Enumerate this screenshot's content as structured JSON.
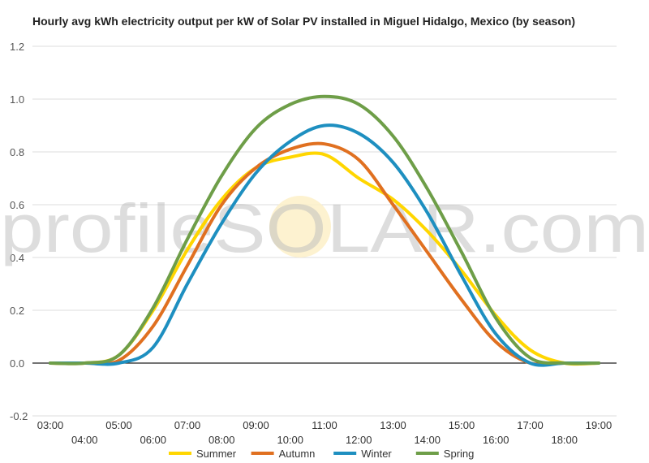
{
  "chart_data": {
    "type": "line",
    "title": "Hourly avg kWh electricity output per kW of Solar PV installed in Miguel Hidalgo, Mexico (by season)",
    "xlabel": "",
    "ylabel": "",
    "ylim": [
      -0.2,
      1.2
    ],
    "yticks": [
      -0.2,
      0.0,
      0.2,
      0.4,
      0.6,
      0.8,
      1.0,
      1.2
    ],
    "ytick_labels": [
      "-0.2",
      "0.0",
      "0.2",
      "0.4",
      "0.6",
      "0.8",
      "1.0",
      "1.2"
    ],
    "x": [
      3,
      4,
      5,
      6,
      7,
      8,
      9,
      10,
      11,
      12,
      13,
      14,
      15,
      16,
      17,
      18,
      19
    ],
    "x_labels": [
      "03:00",
      "04:00",
      "05:00",
      "06:00",
      "07:00",
      "08:00",
      "09:00",
      "10:00",
      "11:00",
      "12:00",
      "13:00",
      "14:00",
      "15:00",
      "16:00",
      "17:00",
      "18:00",
      "19:00"
    ],
    "grid": true,
    "legend_position": "bottom",
    "watermark": "profileSOLAR.com",
    "series": [
      {
        "name": "Summer",
        "color": "#ffd600",
        "values": [
          0.0,
          0.0,
          0.03,
          0.2,
          0.43,
          0.62,
          0.74,
          0.78,
          0.79,
          0.7,
          0.62,
          0.5,
          0.35,
          0.18,
          0.05,
          0.0,
          0.0
        ]
      },
      {
        "name": "Autumn",
        "color": "#e07020",
        "values": [
          0.0,
          0.0,
          0.01,
          0.14,
          0.37,
          0.6,
          0.74,
          0.81,
          0.83,
          0.77,
          0.6,
          0.42,
          0.24,
          0.08,
          0.0,
          0.0,
          0.0
        ]
      },
      {
        "name": "Winter",
        "color": "#1e8fc0",
        "values": [
          0.0,
          0.0,
          0.0,
          0.06,
          0.3,
          0.53,
          0.72,
          0.84,
          0.9,
          0.87,
          0.76,
          0.57,
          0.33,
          0.11,
          0.0,
          0.0,
          0.0
        ]
      },
      {
        "name": "Spring",
        "color": "#6e9e48",
        "values": [
          0.0,
          0.0,
          0.03,
          0.21,
          0.47,
          0.71,
          0.89,
          0.98,
          1.01,
          0.98,
          0.86,
          0.66,
          0.42,
          0.17,
          0.02,
          0.0,
          0.0
        ]
      }
    ]
  }
}
